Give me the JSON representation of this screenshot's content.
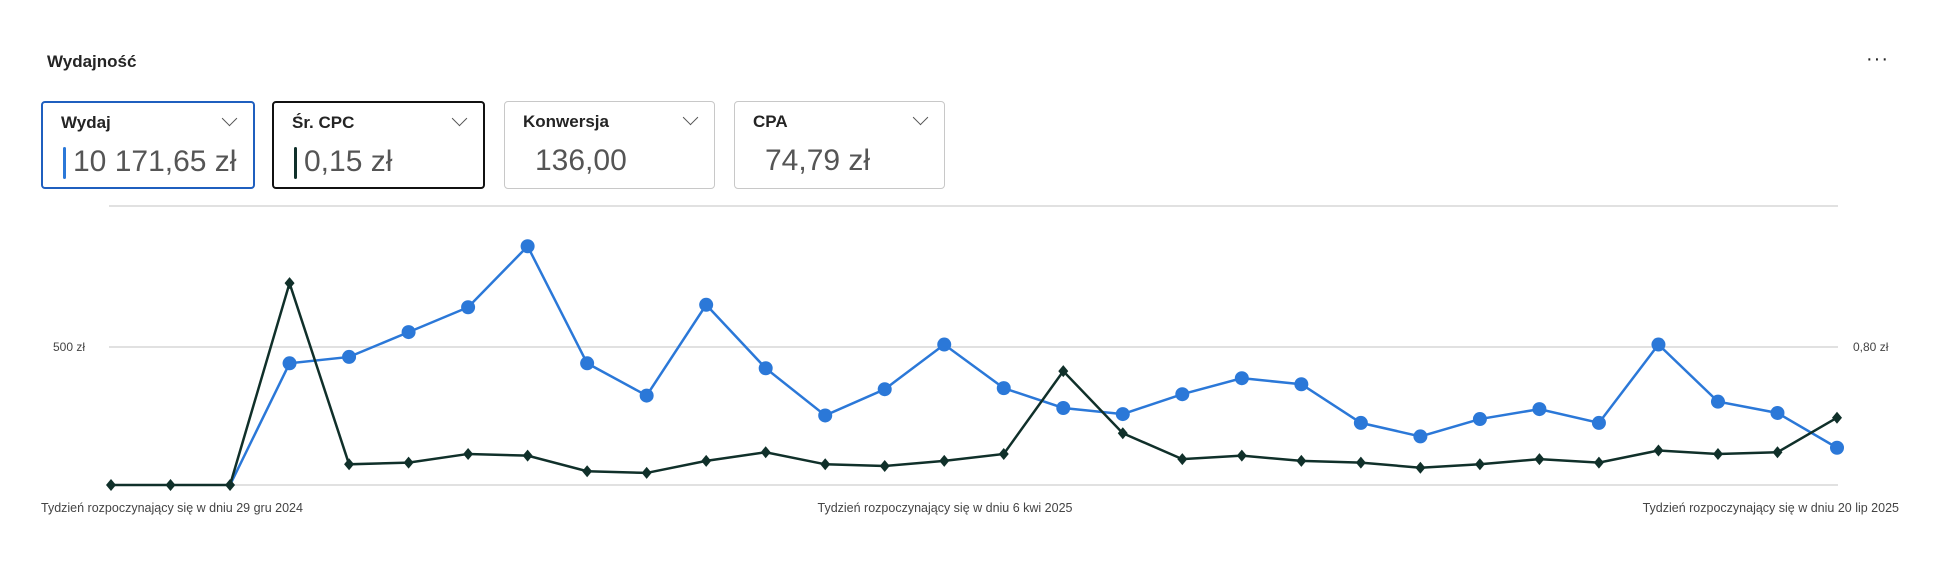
{
  "header": {
    "title": "Wydajność",
    "more_label": "···"
  },
  "cards": [
    {
      "label": "Wydaj",
      "value": "10 171,65 zł",
      "selected": true,
      "color": "#2b78d8"
    },
    {
      "label": "Śr. CPC",
      "value": "0,15 zł",
      "selected": true,
      "color": "#10302a"
    },
    {
      "label": "Konwersja",
      "value": "136,00",
      "selected": false
    },
    {
      "label": "CPA",
      "value": "74,79 zł",
      "selected": false
    }
  ],
  "chart_data": {
    "type": "line",
    "x_tick_labels": [
      "Tydzień rozpoczynający się w dniu 29 gru 2024",
      "Tydzień rozpoczynający się w dniu 6 kwi 2025",
      "Tydzień rozpoczynający się w dniu 20 lip 2025"
    ],
    "y_left": {
      "tick_label": "500 zł",
      "ylim": [
        0,
        1000
      ]
    },
    "y_right": {
      "tick_label": "0,80 zł",
      "ylim": [
        0,
        1.6
      ]
    },
    "grid": true,
    "series": [
      {
        "name": "Wydaj",
        "axis": "left",
        "color": "#2b78d8",
        "marker": "circle",
        "values": [
          null,
          null,
          0,
          441,
          464,
          554,
          644,
          865,
          441,
          324,
          653,
          423,
          252,
          347,
          509,
          351,
          279,
          257,
          329,
          387,
          365,
          225,
          176,
          239,
          275,
          225,
          509,
          302,
          261,
          135
        ]
      },
      {
        "name": "Śr. CPC",
        "axis": "right",
        "color": "#10302a",
        "marker": "diamond",
        "values": [
          0,
          0,
          0,
          1.17,
          0.12,
          0.13,
          0.18,
          0.17,
          0.08,
          0.07,
          0.14,
          0.19,
          0.12,
          0.11,
          0.14,
          0.18,
          0.66,
          0.3,
          0.15,
          0.17,
          0.14,
          0.13,
          0.1,
          0.12,
          0.15,
          0.13,
          0.2,
          0.18,
          0.19,
          0.39
        ]
      }
    ]
  }
}
